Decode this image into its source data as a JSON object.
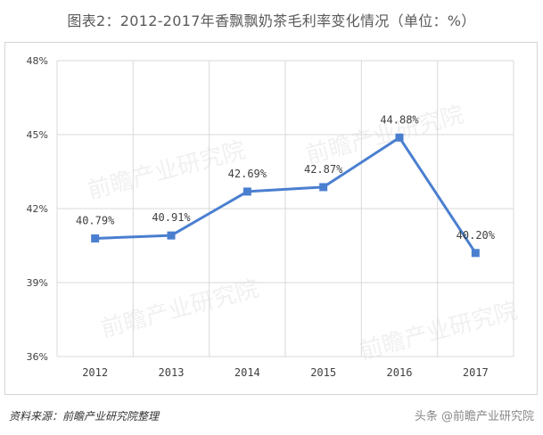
{
  "title": "图表2：2012-2017年香飘飘奶茶毛利率变化情况（单位：%）",
  "source": "资料来源：前瞻产业研究院整理",
  "watermark": "头条 @前瞻产业研究院",
  "background_watermark": "前瞻产业研究院",
  "colors": {
    "line": "#4a7fd0",
    "marker": "#4a7fd0",
    "grid": "#d9d9d9",
    "text": "#404040"
  },
  "chart_data": {
    "type": "line",
    "title": "图表2：2012-2017年香飘飘奶茶毛利率变化情况（单位：%）",
    "xlabel": "",
    "ylabel": "",
    "categories": [
      "2012",
      "2013",
      "2014",
      "2015",
      "2016",
      "2017"
    ],
    "series": [
      {
        "values": [
          40.79,
          40.91,
          42.69,
          42.87,
          44.88,
          40.2
        ],
        "labels": [
          "40.79%",
          "40.91%",
          "42.69%",
          "42.87%",
          "44.88%",
          "40.20%"
        ]
      }
    ],
    "ylim": [
      36,
      48
    ],
    "yticks": [
      36,
      39,
      42,
      45,
      48
    ],
    "ytick_labels": [
      "36%",
      "39%",
      "42%",
      "45%",
      "48%"
    ],
    "grid": true,
    "legend": "none"
  }
}
